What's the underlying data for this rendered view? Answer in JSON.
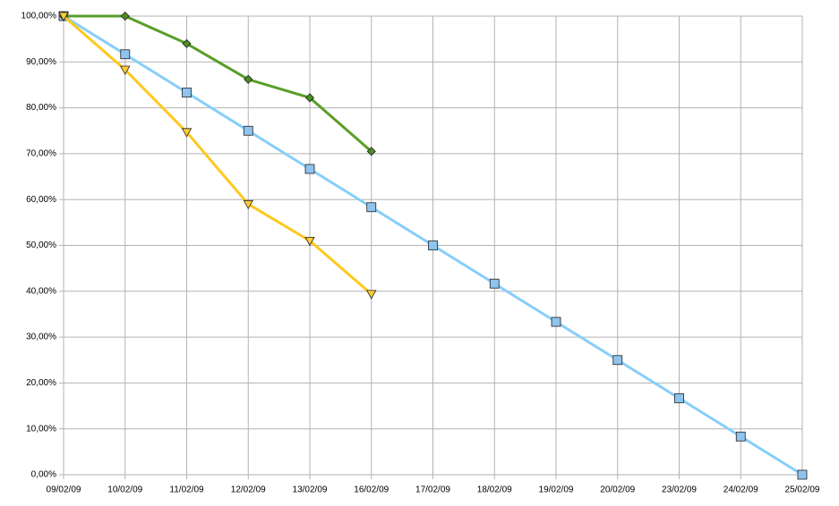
{
  "chart_data": {
    "type": "line",
    "categories": [
      "09/02/09",
      "10/02/09",
      "11/02/09",
      "12/02/09",
      "13/02/09",
      "16/02/09",
      "17/02/09",
      "18/02/09",
      "19/02/09",
      "20/02/09",
      "23/02/09",
      "24/02/09",
      "25/02/09"
    ],
    "series": [
      {
        "color": "#87cefa",
        "marker": "square",
        "marker_color": "#8ec4ee",
        "values": [
          100,
          91.67,
          83.33,
          75,
          66.67,
          58.33,
          50,
          41.67,
          33.33,
          25,
          16.67,
          8.33,
          0
        ]
      },
      {
        "color": "#5a9e28",
        "marker": "diamond",
        "marker_color": "#4e8c22",
        "values": [
          100,
          100,
          94,
          86.2,
          82.2,
          70.5,
          null,
          null,
          null,
          null,
          null,
          null,
          null
        ]
      },
      {
        "color": "#ffc81e",
        "marker": "triangle-down",
        "marker_color": "#ffcc33",
        "values": [
          100,
          88.3,
          74.7,
          59,
          51,
          39.4,
          null,
          null,
          null,
          null,
          null,
          null,
          null
        ]
      }
    ],
    "ylim": [
      0,
      100
    ],
    "yticks": [
      {
        "value": 0,
        "label": "0,00%"
      },
      {
        "value": 10,
        "label": "10,00%"
      },
      {
        "value": 20,
        "label": "20,00%"
      },
      {
        "value": 30,
        "label": "30,00%"
      },
      {
        "value": 40,
        "label": "40,00%"
      },
      {
        "value": 50,
        "label": "50,00%"
      },
      {
        "value": 60,
        "label": "60,00%"
      },
      {
        "value": 70,
        "label": "70,00%"
      },
      {
        "value": 80,
        "label": "80,00%"
      },
      {
        "value": 90,
        "label": "90,00%"
      },
      {
        "value": 100,
        "label": "100,00%"
      }
    ],
    "grid": true
  }
}
